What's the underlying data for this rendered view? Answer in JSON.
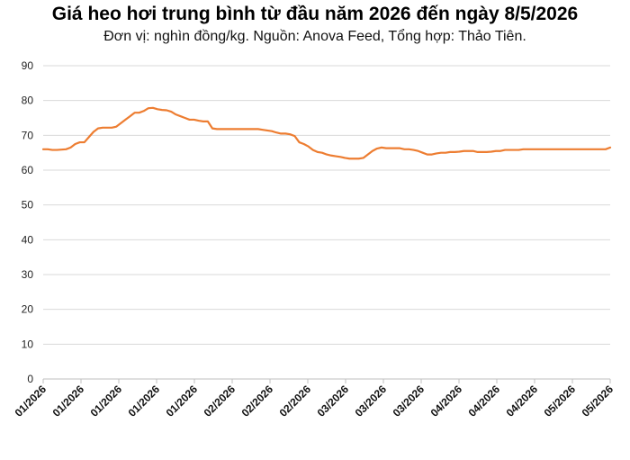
{
  "chart_data": {
    "type": "line",
    "title": "Giá heo hơi trung bình từ đầu năm 2026 đến ngày 8/5/2026",
    "subtitle": "Đơn vị: nghìn đồng/kg. Nguồn: Anova Feed, Tổng hợp: Thảo Tiên.",
    "xlabel": "",
    "ylabel": "",
    "ylim": [
      0,
      90
    ],
    "yticks": [
      0,
      10,
      20,
      30,
      40,
      50,
      60,
      70,
      80,
      90
    ],
    "grid": true,
    "legend": "none",
    "line_color": "#ED7D31",
    "x_tick_labels": [
      "01/2026",
      "01/2026",
      "01/2026",
      "01/2026",
      "01/2026",
      "02/2026",
      "02/2026",
      "02/2026",
      "03/2026",
      "03/2026",
      "03/2026",
      "04/2026",
      "04/2026",
      "04/2026",
      "05/2026",
      "05/2026"
    ],
    "series": [
      {
        "name": "",
        "values": [
          66,
          66,
          65.8,
          65.8,
          65.9,
          66,
          66.5,
          67.5,
          68,
          68,
          69.5,
          71,
          72,
          72.2,
          72.2,
          72.2,
          72.5,
          73.5,
          74.5,
          75.5,
          76.5,
          76.5,
          77,
          77.8,
          77.9,
          77.5,
          77.3,
          77.2,
          76.8,
          76,
          75.5,
          75,
          74.5,
          74.5,
          74.2,
          74,
          74,
          72,
          71.8,
          71.8,
          71.8,
          71.8,
          71.8,
          71.8,
          71.8,
          71.8,
          71.8,
          71.8,
          71.6,
          71.4,
          71.2,
          70.8,
          70.5,
          70.5,
          70.3,
          69.8,
          68,
          67.5,
          66.8,
          65.8,
          65.2,
          65,
          64.5,
          64.2,
          64,
          63.8,
          63.5,
          63.3,
          63.3,
          63.3,
          63.5,
          64.5,
          65.5,
          66.2,
          66.5,
          66.3,
          66.3,
          66.3,
          66.3,
          66,
          66,
          65.8,
          65.5,
          65,
          64.5,
          64.5,
          64.8,
          65,
          65,
          65.2,
          65.2,
          65.3,
          65.5,
          65.5,
          65.5,
          65.2,
          65.2,
          65.2,
          65.3,
          65.5,
          65.5,
          65.8,
          65.8,
          65.8,
          65.8,
          66,
          66,
          66,
          66,
          66,
          66,
          66,
          66,
          66,
          66,
          66,
          66,
          66,
          66,
          66,
          66,
          66,
          66,
          66,
          66.5
        ]
      }
    ]
  }
}
